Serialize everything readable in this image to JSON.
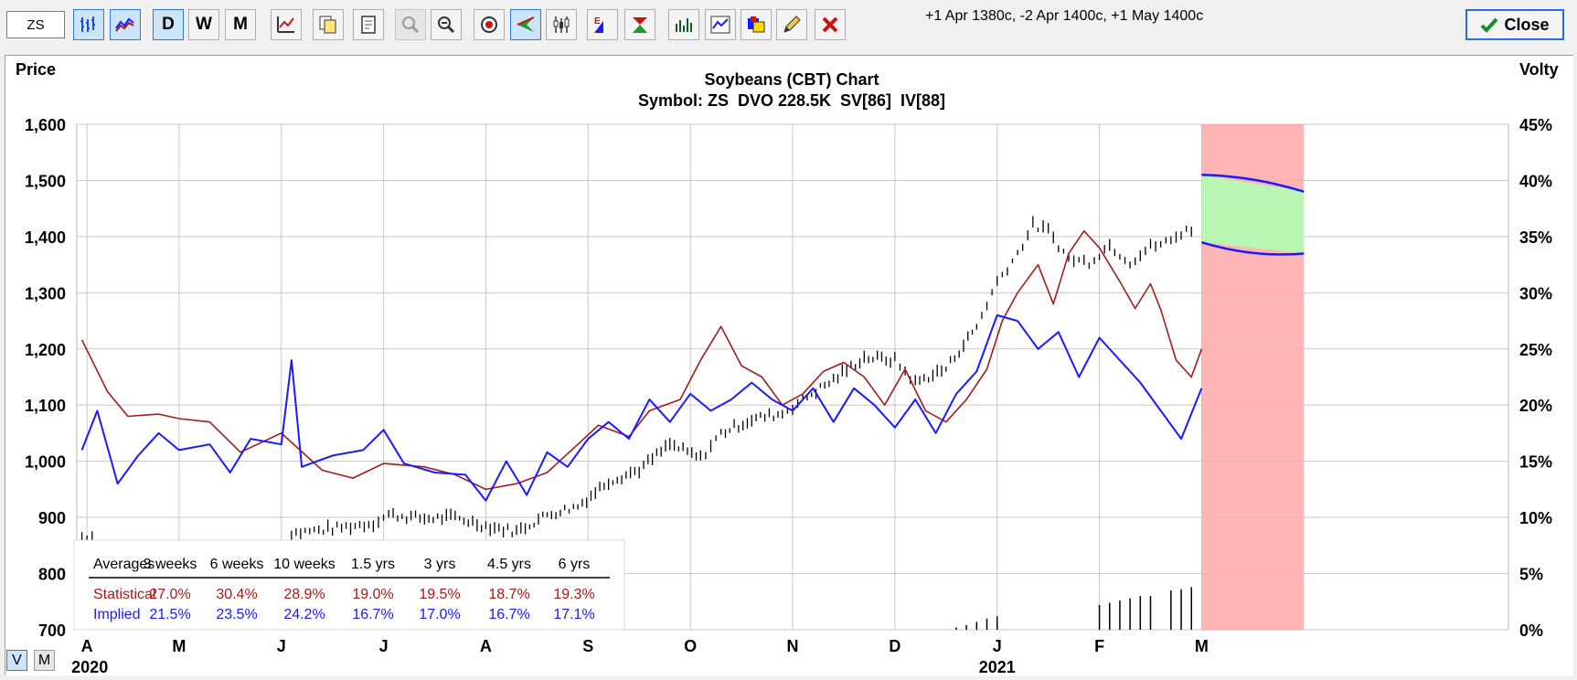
{
  "toolbar": {
    "symbol_value": "ZS",
    "info_text": "+1 Apr 1380c, -2 Apr 1400c, +1 May 1400c",
    "close_label": "Close",
    "buttons": [
      {
        "name": "bar-chart-button",
        "icon": "bar-chart-icon",
        "active": true
      },
      {
        "name": "line-chart-button",
        "icon": "line-chart-icon",
        "active": true
      },
      {
        "name": "daily-button",
        "label": "D",
        "active": true
      },
      {
        "name": "weekly-button",
        "label": "W"
      },
      {
        "name": "monthly-button",
        "label": "M"
      },
      {
        "name": "study-button",
        "icon": "study-icon"
      },
      {
        "name": "copy-button",
        "icon": "copy-icon"
      },
      {
        "name": "print-button",
        "icon": "print-icon"
      },
      {
        "name": "zoom-in-button",
        "icon": "zoom-in-icon",
        "disabled": true
      },
      {
        "name": "zoom-out-button",
        "icon": "zoom-out-icon"
      },
      {
        "name": "target-button",
        "icon": "target-icon"
      },
      {
        "name": "arrow-button",
        "icon": "arrow-left-icon",
        "active": true
      },
      {
        "name": "candlestick-button",
        "icon": "candlestick-icon"
      },
      {
        "name": "earnings-button",
        "icon": "earnings-icon"
      },
      {
        "name": "dividend-button",
        "icon": "dividend-icon"
      },
      {
        "name": "volume-button",
        "icon": "volume-icon"
      },
      {
        "name": "indicator-button",
        "icon": "indicator-icon"
      },
      {
        "name": "color-button",
        "icon": "palette-icon"
      },
      {
        "name": "draw-button",
        "icon": "pencil-icon"
      },
      {
        "name": "delete-button",
        "icon": "close-x-icon"
      }
    ]
  },
  "view_toggle": {
    "v_label": "V",
    "m_label": "M"
  },
  "colors": {
    "price": "#000000",
    "statistical": "#a31c1c",
    "implied": "#1a1aff",
    "projection_green": "#b9f6b4",
    "projection_red": "#ffa8a8"
  },
  "chart_data": {
    "type": "line",
    "title": "Soybeans (CBT) Chart",
    "subtitle": "Symbol: ZS  DVO 228.5K  SV[86]  IV[88]",
    "ylabel_left": "Price",
    "ylabel_right": "Volty",
    "y_left_range": [
      700,
      1600
    ],
    "y_left_ticks": [
      "1,600",
      "1,500",
      "1,400",
      "1,300",
      "1,200",
      "1,100",
      "1,000",
      "900",
      "800",
      "700"
    ],
    "y_right_range": [
      0,
      45
    ],
    "y_right_ticks": [
      "45%",
      "40%",
      "35%",
      "30%",
      "25%",
      "20%",
      "15%",
      "10%",
      "5%",
      "0%"
    ],
    "x_range": [
      0,
      14
    ],
    "x_ticks": [
      {
        "label": "A",
        "pos": 0.1
      },
      {
        "label": "M",
        "pos": 1.0
      },
      {
        "label": "J",
        "pos": 2.0
      },
      {
        "label": "J",
        "pos": 3.0
      },
      {
        "label": "A",
        "pos": 4.0
      },
      {
        "label": "S",
        "pos": 5.0
      },
      {
        "label": "O",
        "pos": 6.0
      },
      {
        "label": "N",
        "pos": 7.0
      },
      {
        "label": "D",
        "pos": 8.0
      },
      {
        "label": "J",
        "pos": 9.0
      },
      {
        "label": "F",
        "pos": 10.0
      },
      {
        "label": "M",
        "pos": 11.0
      }
    ],
    "year_labels": [
      {
        "label": "2020",
        "pos": 0.1
      },
      {
        "label": "2021",
        "pos": 9.0
      }
    ],
    "grid": true,
    "series": [
      {
        "name": "Price",
        "axis": "left",
        "style": "ohlc-ticks",
        "points": [
          [
            0.05,
            866
          ],
          [
            0.2,
            870
          ],
          [
            2.1,
            872
          ],
          [
            2.5,
            880
          ],
          [
            2.9,
            890
          ],
          [
            3.05,
            905
          ],
          [
            3.4,
            898
          ],
          [
            3.7,
            900
          ],
          [
            4.0,
            885
          ],
          [
            4.3,
            875
          ],
          [
            4.6,
            905
          ],
          [
            4.9,
            920
          ],
          [
            5.2,
            965
          ],
          [
            5.5,
            985
          ],
          [
            5.8,
            1030
          ],
          [
            6.1,
            1005
          ],
          [
            6.3,
            1050
          ],
          [
            6.6,
            1075
          ],
          [
            6.9,
            1085
          ],
          [
            7.1,
            1110
          ],
          [
            7.4,
            1145
          ],
          [
            7.7,
            1185
          ],
          [
            8.0,
            1180
          ],
          [
            8.2,
            1140
          ],
          [
            8.5,
            1165
          ],
          [
            8.8,
            1240
          ],
          [
            9.0,
            1320
          ],
          [
            9.2,
            1370
          ],
          [
            9.35,
            1420
          ],
          [
            9.5,
            1410
          ],
          [
            9.7,
            1360
          ],
          [
            9.9,
            1355
          ],
          [
            10.1,
            1385
          ],
          [
            10.3,
            1355
          ],
          [
            10.5,
            1382
          ],
          [
            10.7,
            1392
          ],
          [
            10.85,
            1415
          ],
          [
            10.95,
            1395
          ]
        ]
      },
      {
        "name": "Statistical",
        "axis": "right",
        "style": "line",
        "points": [
          [
            0.05,
            25.8
          ],
          [
            0.3,
            21.2
          ],
          [
            0.5,
            19.0
          ],
          [
            0.8,
            19.2
          ],
          [
            1.0,
            18.8
          ],
          [
            1.3,
            18.5
          ],
          [
            1.6,
            15.8
          ],
          [
            2.0,
            17.5
          ],
          [
            2.4,
            14.2
          ],
          [
            2.7,
            13.5
          ],
          [
            3.0,
            14.8
          ],
          [
            3.4,
            14.5
          ],
          [
            3.7,
            13.8
          ],
          [
            4.0,
            12.5
          ],
          [
            4.3,
            13.0
          ],
          [
            4.6,
            14.0
          ],
          [
            4.9,
            16.5
          ],
          [
            5.1,
            18.2
          ],
          [
            5.4,
            17.2
          ],
          [
            5.6,
            19.5
          ],
          [
            5.9,
            20.5
          ],
          [
            6.1,
            24.0
          ],
          [
            6.3,
            27.0
          ],
          [
            6.5,
            23.5
          ],
          [
            6.7,
            22.5
          ],
          [
            6.9,
            20.0
          ],
          [
            7.1,
            21.0
          ],
          [
            7.3,
            23.0
          ],
          [
            7.5,
            23.8
          ],
          [
            7.7,
            22.5
          ],
          [
            7.9,
            20.0
          ],
          [
            8.1,
            23.2
          ],
          [
            8.3,
            19.5
          ],
          [
            8.5,
            18.5
          ],
          [
            8.7,
            20.5
          ],
          [
            8.9,
            23.2
          ],
          [
            9.05,
            27.5
          ],
          [
            9.2,
            30.0
          ],
          [
            9.4,
            32.5
          ],
          [
            9.55,
            29.0
          ],
          [
            9.7,
            33.5
          ],
          [
            9.85,
            35.5
          ],
          [
            10.0,
            34.0
          ],
          [
            10.2,
            31.0
          ],
          [
            10.35,
            28.6
          ],
          [
            10.5,
            30.8
          ],
          [
            10.6,
            28.5
          ],
          [
            10.75,
            24.0
          ],
          [
            10.9,
            22.5
          ],
          [
            11.0,
            25.0
          ]
        ]
      },
      {
        "name": "Implied",
        "axis": "right",
        "style": "line",
        "points": [
          [
            0.05,
            16.0
          ],
          [
            0.2,
            19.5
          ],
          [
            0.4,
            13.0
          ],
          [
            0.6,
            15.5
          ],
          [
            0.8,
            17.5
          ],
          [
            1.0,
            16.0
          ],
          [
            1.3,
            16.5
          ],
          [
            1.5,
            14.0
          ],
          [
            1.7,
            17.0
          ],
          [
            2.0,
            16.5
          ],
          [
            2.1,
            24.0
          ],
          [
            2.2,
            14.5
          ],
          [
            2.5,
            15.5
          ],
          [
            2.8,
            16.0
          ],
          [
            3.0,
            17.8
          ],
          [
            3.2,
            14.8
          ],
          [
            3.5,
            14.0
          ],
          [
            3.8,
            13.8
          ],
          [
            4.0,
            11.5
          ],
          [
            4.2,
            15.0
          ],
          [
            4.4,
            12.0
          ],
          [
            4.6,
            15.8
          ],
          [
            4.8,
            14.5
          ],
          [
            5.0,
            17.0
          ],
          [
            5.2,
            18.5
          ],
          [
            5.4,
            17.0
          ],
          [
            5.6,
            20.5
          ],
          [
            5.8,
            18.5
          ],
          [
            6.0,
            21.0
          ],
          [
            6.2,
            19.5
          ],
          [
            6.4,
            20.5
          ],
          [
            6.6,
            22.0
          ],
          [
            6.8,
            20.5
          ],
          [
            7.0,
            19.5
          ],
          [
            7.2,
            21.5
          ],
          [
            7.4,
            18.5
          ],
          [
            7.6,
            21.5
          ],
          [
            7.8,
            20.0
          ],
          [
            8.0,
            18.0
          ],
          [
            8.2,
            20.5
          ],
          [
            8.4,
            17.5
          ],
          [
            8.6,
            21.0
          ],
          [
            8.8,
            23.0
          ],
          [
            9.0,
            28.0
          ],
          [
            9.2,
            27.5
          ],
          [
            9.4,
            25.0
          ],
          [
            9.6,
            26.5
          ],
          [
            9.8,
            22.5
          ],
          [
            10.0,
            26.0
          ],
          [
            10.2,
            24.0
          ],
          [
            10.4,
            22.0
          ],
          [
            10.6,
            19.5
          ],
          [
            10.8,
            17.0
          ],
          [
            11.0,
            21.5
          ]
        ]
      }
    ],
    "volume_bars": [
      {
        "x": 8.6,
        "volume": 0.2
      },
      {
        "x": 8.7,
        "volume": 0.4
      },
      {
        "x": 8.8,
        "volume": 0.7
      },
      {
        "x": 8.9,
        "volume": 1.0
      },
      {
        "x": 9.0,
        "volume": 1.2
      },
      {
        "x": 10.0,
        "volume": 2.2
      },
      {
        "x": 10.1,
        "volume": 2.4
      },
      {
        "x": 10.2,
        "volume": 2.6
      },
      {
        "x": 10.3,
        "volume": 2.8
      },
      {
        "x": 10.4,
        "volume": 3.0
      },
      {
        "x": 10.5,
        "volume": 3.0
      },
      {
        "x": 10.7,
        "volume": 3.5
      },
      {
        "x": 10.8,
        "volume": 3.6
      },
      {
        "x": 10.9,
        "volume": 3.8
      }
    ],
    "projection": {
      "x_start": 11.0,
      "x_end": 12.0,
      "upper_start": 40.5,
      "upper_end": 39.0,
      "lower_start": 34.5,
      "lower_end": 33.5
    },
    "averages_table": {
      "headers": [
        "Averages",
        "3 weeks",
        "6 weeks",
        "10 weeks",
        "1.5 yrs",
        "3 yrs",
        "4.5 yrs",
        "6 yrs"
      ],
      "rows": [
        {
          "label": "Statistical",
          "values": [
            "27.0%",
            "30.4%",
            "28.9%",
            "19.0%",
            "19.5%",
            "18.7%",
            "19.3%"
          ]
        },
        {
          "label": "Implied",
          "values": [
            "21.5%",
            "23.5%",
            "24.2%",
            "16.7%",
            "17.0%",
            "16.7%",
            "17.1%"
          ]
        }
      ]
    }
  }
}
